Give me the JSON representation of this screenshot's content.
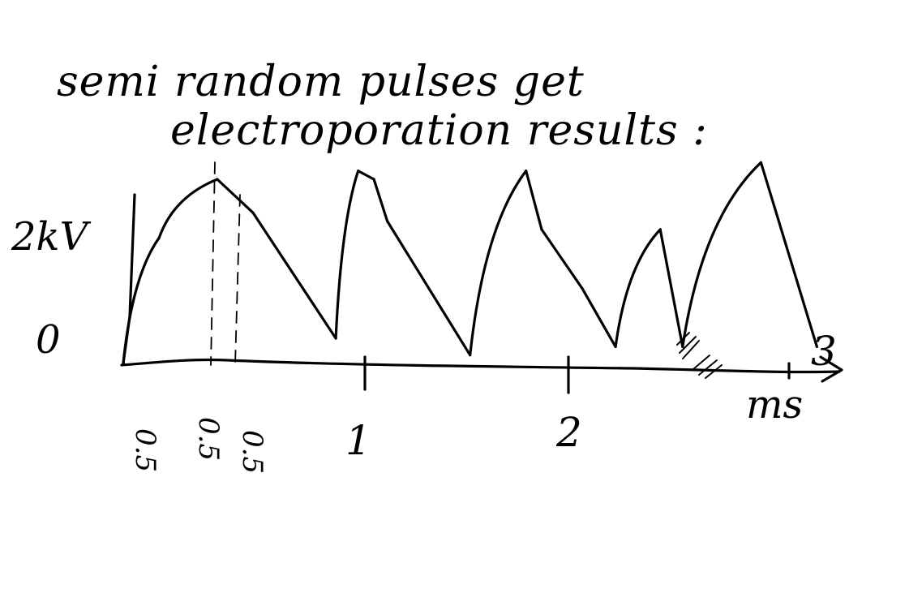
{
  "caption": {
    "line1": "semi random pulses get",
    "line2": "electroporation results :"
  },
  "chart_data": {
    "type": "line",
    "title": "",
    "ylabel": "2kV",
    "y_zero_label": "0",
    "xlabel": "ms",
    "x_tick_labels": [
      "0.5",
      "1",
      "2",
      "3"
    ],
    "x_minor_labels": [
      "0.5",
      "0.5"
    ],
    "xlim": [
      0,
      3.2
    ],
    "ylim": [
      0,
      2.5
    ],
    "series": [
      {
        "x": [
          0.0,
          0.16,
          0.42,
          0.58,
          0.95,
          1.05,
          1.12,
          1.18,
          1.55,
          1.8,
          1.87,
          2.05,
          2.2,
          2.4,
          2.5,
          2.85,
          3.1
        ],
        "y": [
          0.0,
          1.5,
          2.2,
          1.8,
          0.3,
          2.3,
          2.2,
          1.7,
          0.1,
          2.3,
          1.6,
          0.9,
          0.2,
          1.6,
          0.2,
          2.4,
          0.2
        ]
      }
    ]
  },
  "icons": {
    "sketch": "hand-drawn-pulse-train"
  }
}
